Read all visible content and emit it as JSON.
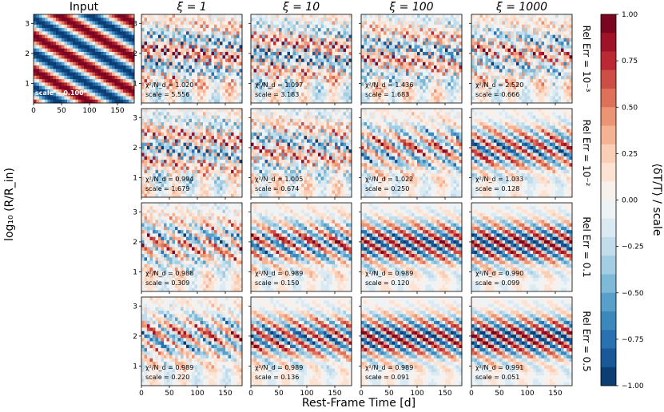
{
  "chart_data": {
    "type": "heatmap",
    "input_title": "Input",
    "column_titles": [
      "ξ = 1",
      "ξ = 10",
      "ξ = 100",
      "ξ = 1000"
    ],
    "row_labels": [
      "Rel Err = 10⁻³",
      "Rel Err = 10⁻²",
      "Rel Err = 0.1",
      "Rel Err = 0.5"
    ],
    "xlabel": "Rest-Frame Time [d]",
    "ylabel": "log₁₀ (R/R_in)",
    "colorbar_label": "⟨δT/T⟩ / scale",
    "xlim": [
      0,
      180
    ],
    "ylim": [
      0.35,
      3.3
    ],
    "xticks": [
      "0",
      "50",
      "100",
      "150"
    ],
    "yticks": [
      "1",
      "2",
      "3"
    ],
    "colorbar_ticks": [
      "1.00",
      "0.75",
      "0.50",
      "0.25",
      "0.00",
      "−0.25",
      "−0.50",
      "−0.75",
      "−1.00"
    ],
    "colorbar_range": [
      -1,
      1
    ],
    "colorbar_levels": 20,
    "colormap": [
      "#67001f",
      "#b2182b",
      "#d6604d",
      "#f4a582",
      "#fddbc7",
      "#f7f7f7",
      "#d1e5f0",
      "#92c5de",
      "#4393c3",
      "#2166ac",
      "#053061"
    ],
    "input_annotation": "scale = 0.100",
    "panels": [
      [
        {
          "chi2": "χ²/N_d = 1.020",
          "scale": "scale = 5.556"
        },
        {
          "chi2": "χ²/N_d = 1.097",
          "scale": "scale = 3.183"
        },
        {
          "chi2": "χ²/N_d = 1.436",
          "scale": "scale = 1.683"
        },
        {
          "chi2": "χ²/N_d = 2.520",
          "scale": "scale = 0.666"
        }
      ],
      [
        {
          "chi2": "χ²/N_d = 0.994",
          "scale": "scale = 1.679"
        },
        {
          "chi2": "χ²/N_d = 1.005",
          "scale": "scale = 0.674"
        },
        {
          "chi2": "χ²/N_d = 1.022",
          "scale": "scale = 0.250"
        },
        {
          "chi2": "χ²/N_d = 1.033",
          "scale": "scale = 0.128"
        }
      ],
      [
        {
          "chi2": "χ²/N_d = 0.988",
          "scale": "scale = 0.309"
        },
        {
          "chi2": "χ²/N_d = 0.989",
          "scale": "scale = 0.150"
        },
        {
          "chi2": "χ²/N_d = 0.989",
          "scale": "scale = 0.120"
        },
        {
          "chi2": "χ²/N_d = 0.990",
          "scale": "scale = 0.099"
        }
      ],
      [
        {
          "chi2": "χ²/N_d = 0.989",
          "scale": "scale = 0.220"
        },
        {
          "chi2": "χ²/N_d = 0.989",
          "scale": "scale = 0.136"
        },
        {
          "chi2": "χ²/N_d = 0.989",
          "scale": "scale = 0.091"
        },
        {
          "chi2": "χ²/N_d = 0.991",
          "scale": "scale = 0.051"
        }
      ]
    ],
    "grid": false
  }
}
